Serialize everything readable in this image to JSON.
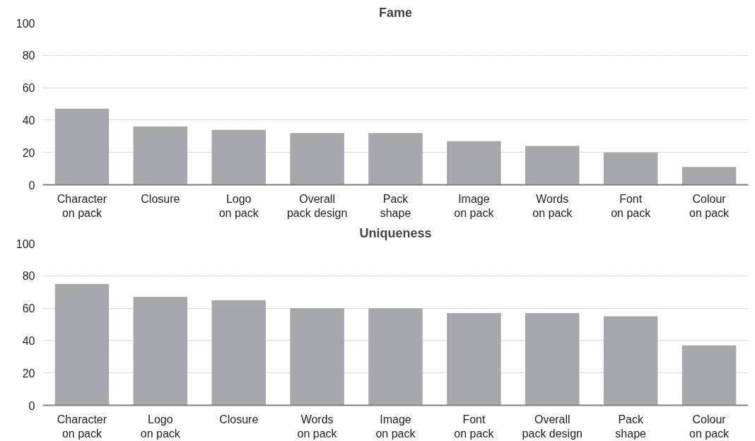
{
  "chart_data": [
    {
      "type": "bar",
      "title": "Fame",
      "categories": [
        "Character\non pack",
        "Closure",
        "Logo\non pack",
        "Overall\npack design",
        "Pack\nshape",
        "Image\non pack",
        "Words\non pack",
        "Font\non pack",
        "Colour\non pack"
      ],
      "values": [
        47,
        36,
        34,
        32,
        32,
        27,
        24,
        20,
        11
      ],
      "color": "#a7a8ac",
      "ylim": [
        0,
        100
      ],
      "yticks": [
        0,
        20,
        40,
        60,
        80,
        100
      ],
      "grid": "y"
    },
    {
      "type": "bar",
      "title": "Uniqueness",
      "categories": [
        "Character\non pack",
        "Logo\non pack",
        "Closure",
        "Words\non pack",
        "Image\non pack",
        "Font\non pack",
        "Overall\npack design",
        "Pack\nshape",
        "Colour\non pack"
      ],
      "values": [
        75,
        67,
        65,
        60,
        60,
        57,
        57,
        55,
        37
      ],
      "color": "#a7a8ac",
      "ylim": [
        0,
        100
      ],
      "yticks": [
        0,
        20,
        40,
        60,
        80,
        100
      ],
      "grid": "y"
    }
  ]
}
